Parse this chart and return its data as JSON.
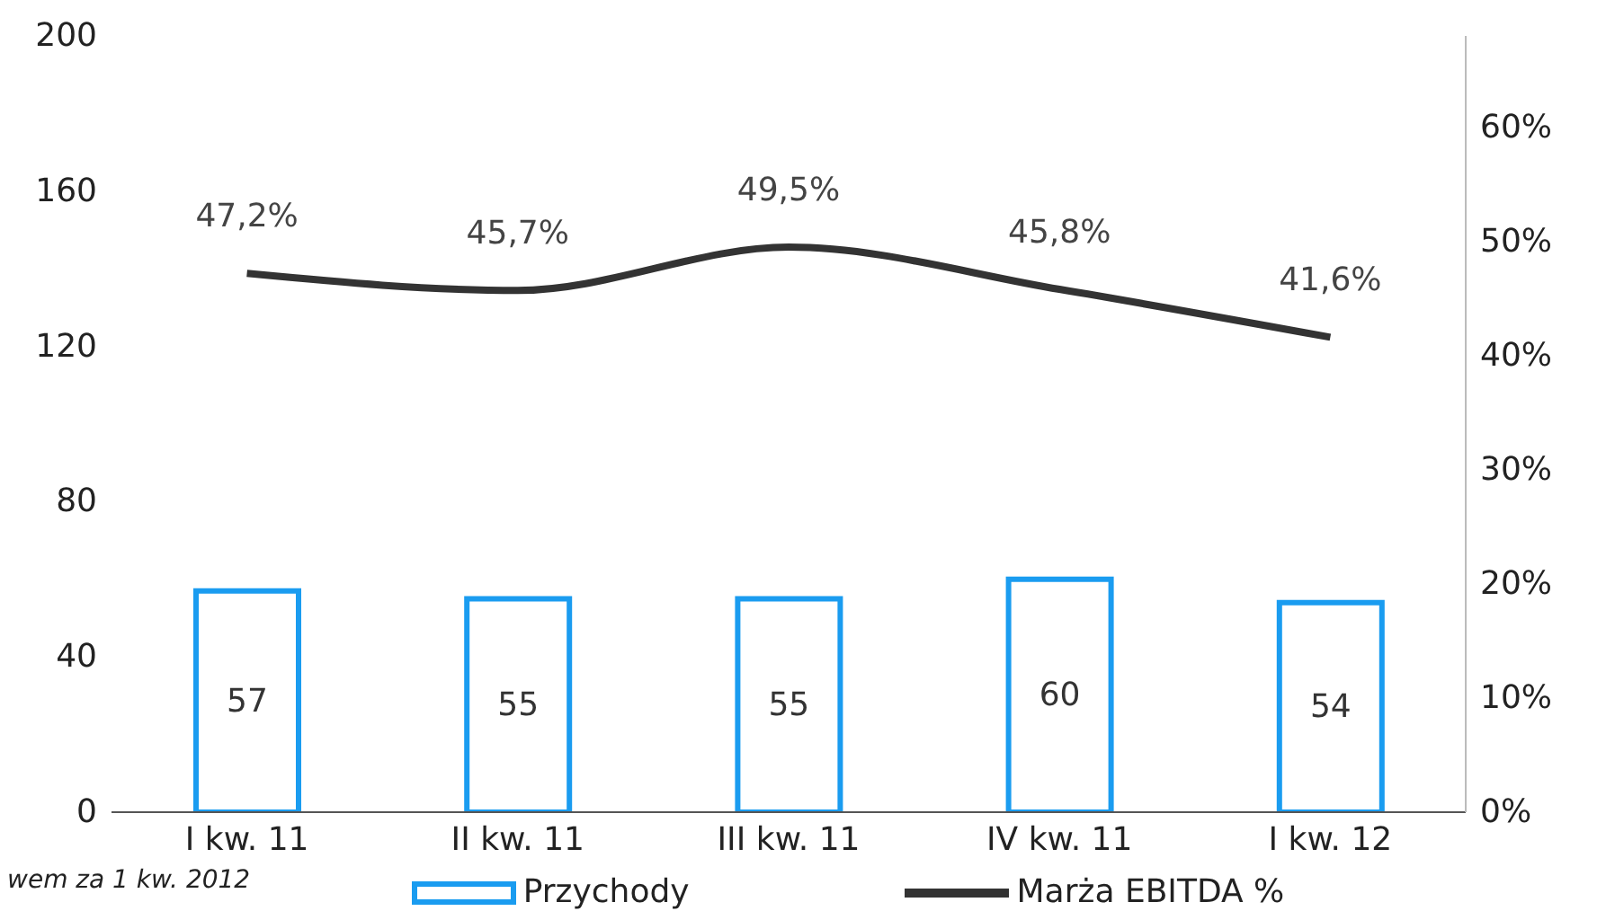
{
  "chart_data": {
    "type": "bar",
    "categories": [
      "I kw. 11",
      "II kw. 11",
      "III kw. 11",
      "IV kw. 11",
      "I kw. 12"
    ],
    "series": [
      {
        "name": "Przychody",
        "type": "bar",
        "color": "#1a9cf0",
        "values": [
          57,
          55,
          55,
          60,
          54
        ],
        "value_labels": [
          "57",
          "55",
          "55",
          "60",
          "54"
        ]
      },
      {
        "name": "Marża EBITDA %",
        "type": "line",
        "axis": "y2",
        "color": "#333333",
        "values": [
          47.2,
          45.7,
          49.5,
          45.8,
          41.6
        ],
        "value_labels": [
          "47,2%",
          "45,7%",
          "49,5%",
          "45,8%",
          "41,6%"
        ]
      }
    ],
    "ylim": [
      0,
      200
    ],
    "yticks": [
      0,
      40,
      80,
      120,
      160,
      200
    ],
    "y2lim": [
      0,
      68
    ],
    "y2ticks": [
      {
        "value": 0,
        "label": "0%"
      },
      {
        "value": 10,
        "label": "10%"
      },
      {
        "value": 20,
        "label": "20%"
      },
      {
        "value": 30,
        "label": "30%"
      },
      {
        "value": 40,
        "label": "40%"
      },
      {
        "value": 50,
        "label": "50%"
      },
      {
        "value": 60,
        "label": "60%"
      }
    ],
    "grid": false,
    "legend": "bottom",
    "marker": "none",
    "line_style": "solid",
    "annotations": [
      "wem za 1 kw. 2012"
    ]
  }
}
